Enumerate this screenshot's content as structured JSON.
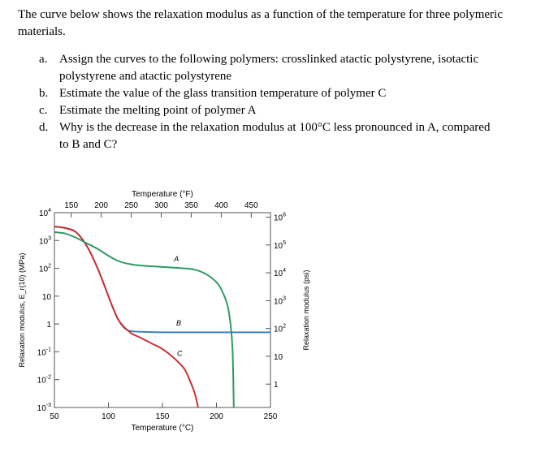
{
  "intro": "The curve below shows the relaxation modulus as a function of the temperature for three polymeric materials.",
  "questions": [
    {
      "letter": "a.",
      "line1": "Assign the curves to the following polymers: crosslinked atactic polystyrene, isotactic",
      "line2": "polystyrene and atactic polystyrene"
    },
    {
      "letter": "b.",
      "line1": "Estimate the value of the glass transition temperature of polymer C"
    },
    {
      "letter": "c.",
      "line1": "Estimate the melting point of polymer A"
    },
    {
      "letter": "d.",
      "line1": "Why is the decrease in the relaxation modulus at 100°C less pronounced in A, compared",
      "line2": "to B and C?"
    }
  ],
  "chart_data": {
    "type": "line",
    "title": "",
    "top_axis_label": "Temperature (°F)",
    "top_ticks": [
      "150",
      "200",
      "250",
      "300",
      "350",
      "400",
      "450"
    ],
    "xlabel": "Temperature (°C)",
    "x_ticks": [
      "50",
      "100",
      "150",
      "200",
      "250"
    ],
    "ylabel_left": "Relaxation modulus, E_r(10) (MPa)",
    "left_ticks": [
      "10^4",
      "10^3",
      "10^2",
      "10",
      "1",
      "10^-1",
      "10^-2",
      "10^-3"
    ],
    "ylabel_right": "Relaxation modulus (psi)",
    "right_ticks": [
      "10^6",
      "10^5",
      "10^4",
      "10^3",
      "10^2",
      "10",
      "1"
    ],
    "xlim": [
      50,
      250
    ],
    "ylim_log10": [
      -3,
      4
    ],
    "series": [
      {
        "name": "A",
        "color": "#2e9a63",
        "points": [
          [
            50,
            3.3
          ],
          [
            60,
            3.25
          ],
          [
            70,
            3.1
          ],
          [
            80,
            2.9
          ],
          [
            90,
            2.7
          ],
          [
            100,
            2.45
          ],
          [
            110,
            2.25
          ],
          [
            120,
            2.15
          ],
          [
            130,
            2.1
          ],
          [
            150,
            2.05
          ],
          [
            170,
            2.0
          ],
          [
            180,
            1.95
          ],
          [
            190,
            1.8
          ],
          [
            200,
            1.5
          ],
          [
            205,
            1.2
          ],
          [
            210,
            0.7
          ],
          [
            213,
            0.0
          ],
          [
            215,
            -1.0
          ],
          [
            216,
            -3.0
          ]
        ]
      },
      {
        "name": "B",
        "color": "#3f7fbf",
        "points": [
          [
            50,
            3.5
          ],
          [
            60,
            3.45
          ],
          [
            70,
            3.3
          ],
          [
            80,
            2.8
          ],
          [
            90,
            2.0
          ],
          [
            100,
            1.0
          ],
          [
            105,
            0.5
          ],
          [
            110,
            0.1
          ],
          [
            115,
            -0.15
          ],
          [
            120,
            -0.25
          ],
          [
            130,
            -0.28
          ],
          [
            160,
            -0.3
          ],
          [
            200,
            -0.3
          ],
          [
            250,
            -0.3
          ]
        ]
      },
      {
        "name": "C",
        "color": "#cc3333",
        "points": [
          [
            50,
            3.5
          ],
          [
            60,
            3.45
          ],
          [
            70,
            3.3
          ],
          [
            80,
            2.8
          ],
          [
            90,
            2.0
          ],
          [
            100,
            1.0
          ],
          [
            105,
            0.5
          ],
          [
            110,
            0.1
          ],
          [
            120,
            -0.3
          ],
          [
            130,
            -0.5
          ],
          [
            140,
            -0.7
          ],
          [
            150,
            -0.9
          ],
          [
            160,
            -1.2
          ],
          [
            170,
            -1.6
          ],
          [
            175,
            -2.0
          ],
          [
            180,
            -2.5
          ],
          [
            183,
            -3.0
          ]
        ]
      }
    ],
    "labels": [
      {
        "text": "A",
        "x": 163,
        "y": 2.25
      },
      {
        "text": "B",
        "x": 165,
        "y": -0.05
      },
      {
        "text": "C",
        "x": 166,
        "y": -1.15
      }
    ]
  }
}
